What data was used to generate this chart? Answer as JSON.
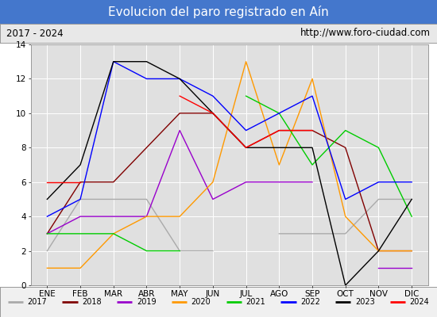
{
  "title": "Evolucion del paro registrado en Aín",
  "subtitle_left": "2017 - 2024",
  "subtitle_right": "http://www.foro-ciudad.com",
  "months": [
    "ENE",
    "FEB",
    "MAR",
    "ABR",
    "MAY",
    "JUN",
    "JUL",
    "AGO",
    "SEP",
    "OCT",
    "NOV",
    "DIC"
  ],
  "series": {
    "2017": [
      2,
      5,
      5,
      5,
      2,
      2,
      null,
      3,
      3,
      3,
      5,
      5
    ],
    "2018": [
      3,
      6,
      6,
      8,
      10,
      10,
      8,
      9,
      9,
      8,
      2,
      2
    ],
    "2019": [
      3,
      4,
      4,
      4,
      9,
      5,
      6,
      6,
      6,
      null,
      1,
      1
    ],
    "2020": [
      1,
      1,
      3,
      4,
      4,
      6,
      13,
      7,
      12,
      4,
      2,
      2
    ],
    "2021": [
      3,
      3,
      3,
      2,
      2,
      null,
      11,
      10,
      7,
      9,
      8,
      4
    ],
    "2022": [
      4,
      5,
      13,
      12,
      12,
      11,
      9,
      10,
      11,
      5,
      6,
      6
    ],
    "2023": [
      5,
      7,
      13,
      13,
      12,
      10,
      8,
      8,
      8,
      0,
      2,
      5
    ],
    "2024": [
      6,
      6,
      null,
      null,
      11,
      10,
      8,
      9,
      9,
      null,
      null,
      null
    ]
  },
  "colors": {
    "2017": "#aaaaaa",
    "2018": "#800000",
    "2019": "#9900cc",
    "2020": "#ff9900",
    "2021": "#00cc00",
    "2022": "#0000ff",
    "2023": "#000000",
    "2024": "#ff0000"
  },
  "ylim": [
    0,
    14
  ],
  "yticks": [
    0,
    2,
    4,
    6,
    8,
    10,
    12,
    14
  ],
  "title_bg": "#4477cc",
  "title_color": "#ffffff",
  "subtitle_bg": "#e8e8e8",
  "plot_bg": "#e0e0e0",
  "chart_bg": "#ffffff",
  "legend_bg": "#f0f0f0"
}
